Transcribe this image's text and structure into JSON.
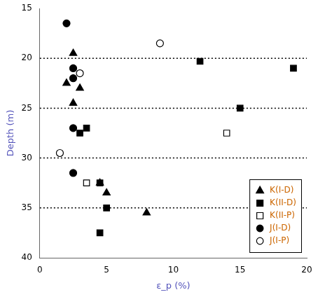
{
  "chart_data": {
    "type": "scatter",
    "xlabel": "ε_p (%)",
    "ylabel": "Depth (m)",
    "xlim": [
      0,
      20
    ],
    "ylim": [
      40,
      15
    ],
    "xticks": [
      0,
      5,
      10,
      15,
      20
    ],
    "yticks": [
      15,
      20,
      25,
      30,
      35,
      40
    ],
    "hlines": [
      20,
      25,
      30,
      35
    ],
    "grid": false,
    "legend": "lower right",
    "series": [
      {
        "name": "K(I-D)",
        "color": "black",
        "marker": "triangle",
        "x": [
          2.5,
          2.0,
          3.0,
          2.5,
          4.5,
          5.0,
          8.0
        ],
        "y": [
          19.5,
          22.5,
          23.0,
          24.5,
          32.5,
          33.5,
          35.5
        ]
      },
      {
        "name": "K(II-D)",
        "color": "black",
        "marker": "square",
        "x": [
          3.5,
          12.0,
          4.5,
          3.0,
          15.0,
          5.0,
          4.5,
          19.0
        ],
        "y": [
          27.0,
          20.3,
          32.5,
          27.5,
          25.0,
          35.0,
          37.5,
          21.0
        ]
      },
      {
        "name": "K(II-P)",
        "color": "black",
        "marker": "open square",
        "x": [
          3.5,
          14.0
        ],
        "y": [
          32.5,
          27.5
        ]
      },
      {
        "name": "J(I-D)",
        "color": "black",
        "marker": "circle",
        "x": [
          2.0,
          2.5,
          2.5,
          2.5,
          2.5
        ],
        "y": [
          16.5,
          21.0,
          22.0,
          27.0,
          31.5
        ]
      },
      {
        "name": "J(I-P)",
        "color": "black",
        "marker": "open circle",
        "x": [
          3.0,
          9.0,
          1.5
        ],
        "y": [
          21.5,
          18.5,
          29.5
        ]
      }
    ]
  }
}
